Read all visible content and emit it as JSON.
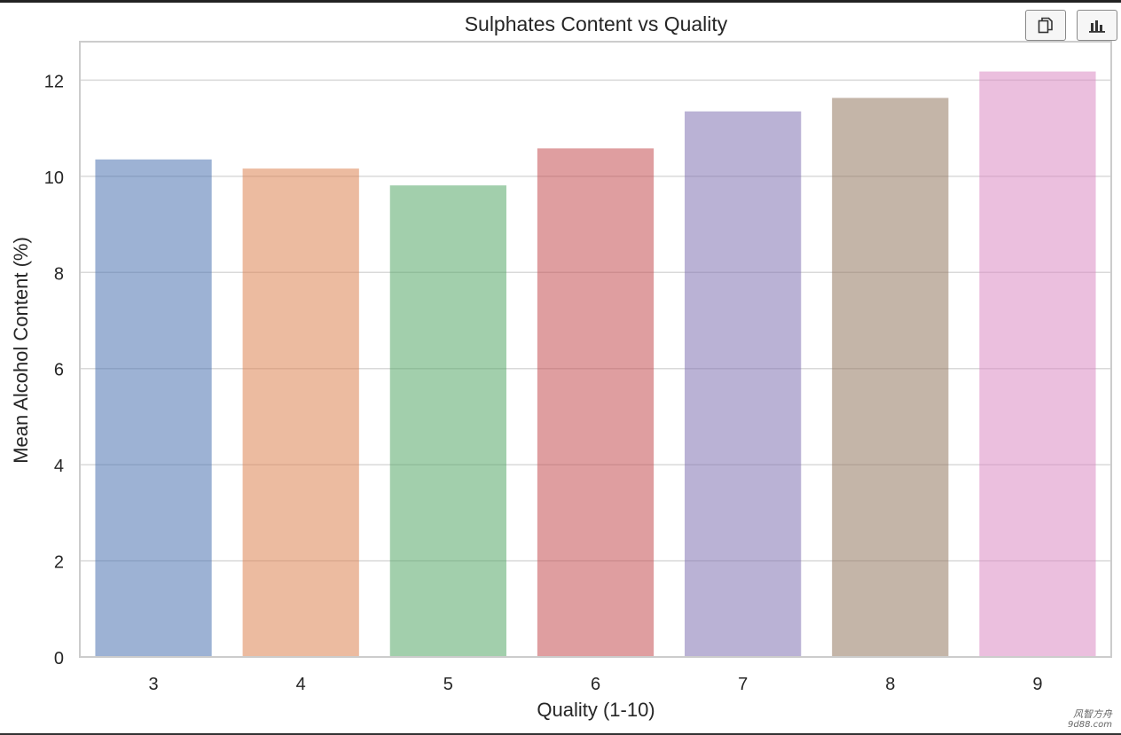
{
  "chart_data": {
    "type": "bar",
    "title": "Sulphates Content vs Quality",
    "xlabel": "Quality (1-10)",
    "ylabel": "Mean Alcohol Content (%)",
    "categories": [
      "3",
      "4",
      "5",
      "6",
      "7",
      "8",
      "9"
    ],
    "values": [
      10.35,
      10.16,
      9.81,
      10.58,
      11.35,
      11.63,
      12.18
    ],
    "colors": [
      "#4c72b0",
      "#dd8452",
      "#55a868",
      "#c44e52",
      "#8172b3",
      "#937860",
      "#da8bc3"
    ],
    "bar_opacity": 0.55,
    "ylim": [
      0,
      12.8
    ],
    "yticks": [
      "0",
      "2",
      "4",
      "6",
      "8",
      "10",
      "12"
    ],
    "grid": true,
    "style": "seaborn-whitegrid"
  },
  "toolbar": {
    "buttons": [
      {
        "name": "copy",
        "icon": "copy-icon"
      },
      {
        "name": "chart",
        "icon": "bar-chart-icon"
      }
    ]
  },
  "watermark": {
    "line1": "风智方舟",
    "line2": "9d88.com"
  }
}
